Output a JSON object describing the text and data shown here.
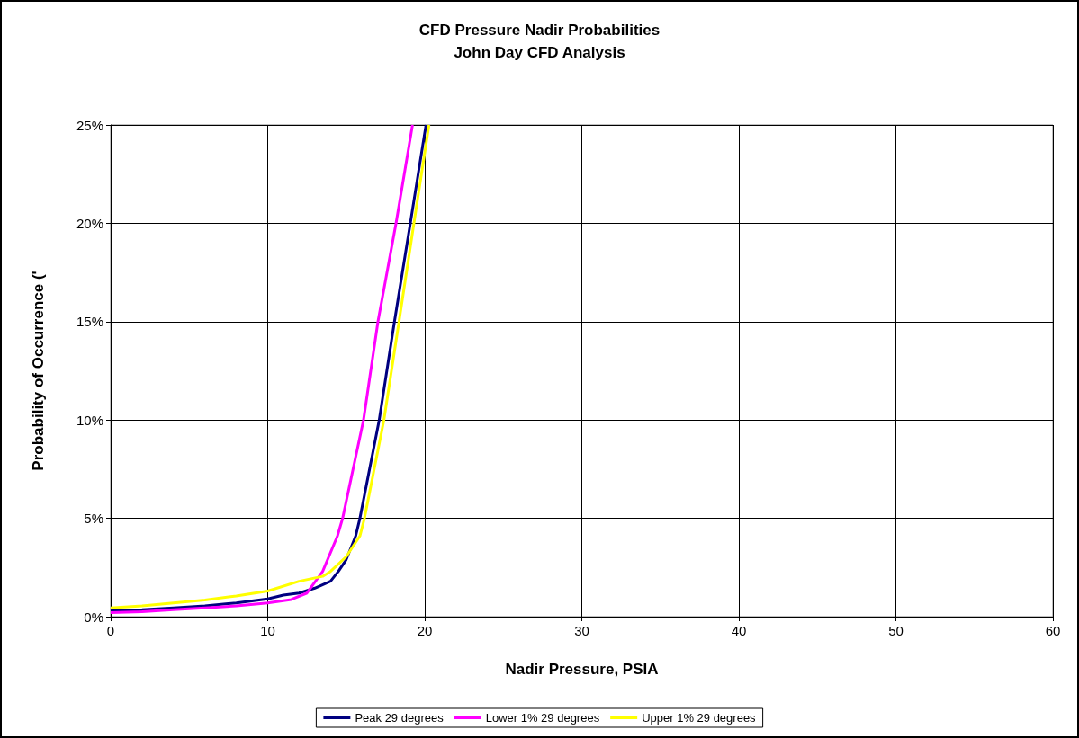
{
  "chart_data": {
    "type": "line",
    "title": "CFD Pressure Nadir Probabilities",
    "subtitle": "John Day CFD Analysis",
    "xlabel": "Nadir Pressure, PSIA",
    "ylabel": "Probability of Occurrence ('",
    "xlim": [
      0,
      60
    ],
    "xticks": [
      0,
      10,
      20,
      30,
      40,
      50,
      60
    ],
    "ylim": [
      0,
      25
    ],
    "yticks": [
      {
        "value": 0,
        "label": "0%"
      },
      {
        "value": 5,
        "label": "5%"
      },
      {
        "value": 10,
        "label": "10%"
      },
      {
        "value": 15,
        "label": "15%"
      },
      {
        "value": 20,
        "label": "20%"
      },
      {
        "value": 25,
        "label": "25%"
      }
    ],
    "grid": true,
    "legend": "bottom",
    "marker": "none",
    "line_style": "solid",
    "series": [
      {
        "name": "Peak 29 degrees",
        "color": "#000080",
        "x": [
          0,
          2,
          4,
          6,
          8,
          10,
          11,
          12,
          13,
          14,
          14.5,
          15,
          15.6,
          15.87,
          17.1,
          18.07,
          19.08,
          20.08
        ],
        "values": [
          0.3,
          0.35,
          0.45,
          0.55,
          0.7,
          0.9,
          1.1,
          1.2,
          1.45,
          1.8,
          2.3,
          2.9,
          4.1,
          5,
          10,
          15,
          20,
          25
        ]
      },
      {
        "name": "Lower 1% 29 degrees",
        "color": "#ff00ff",
        "x": [
          0,
          2,
          4,
          6,
          8,
          10,
          11.5,
          12.5,
          13.5,
          14.44,
          14.77,
          16.1,
          17.02,
          18.17,
          19.22
        ],
        "values": [
          0.2,
          0.25,
          0.35,
          0.45,
          0.55,
          0.7,
          0.87,
          1.2,
          2.3,
          4.1,
          5,
          10,
          15,
          20,
          25
        ]
      },
      {
        "name": "Upper 1% 29 degrees",
        "color": "#ffff00",
        "x": [
          0,
          2,
          4,
          6,
          8,
          10,
          12,
          13.5,
          14,
          15,
          15.87,
          16.16,
          17.4,
          18.36,
          19.31,
          20.27
        ],
        "values": [
          0.45,
          0.55,
          0.7,
          0.85,
          1.05,
          1.3,
          1.8,
          2.05,
          2.3,
          3.05,
          4.1,
          5,
          10,
          15,
          20,
          25
        ]
      }
    ]
  }
}
